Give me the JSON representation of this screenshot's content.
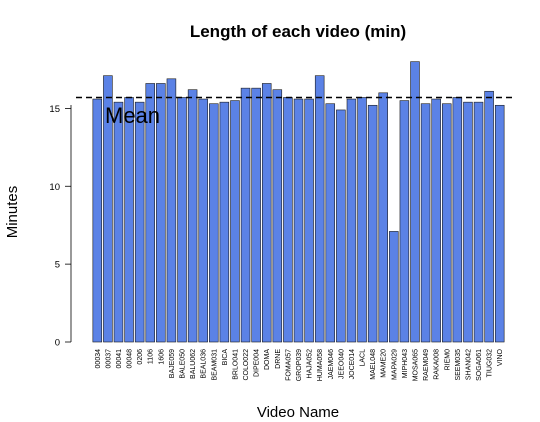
{
  "chart_data": {
    "type": "bar",
    "title": "Length of each video (min)",
    "xlabel": "Video Name",
    "ylabel": "Minutes",
    "ylim": [
      0,
      18.3
    ],
    "yticks": [
      0,
      5,
      10,
      15
    ],
    "bar_color": "#5b82e6",
    "categories": [
      "00034",
      "00037",
      "00041",
      "00048",
      "0206",
      "1106",
      "1606",
      "BAJE059",
      "BALE050",
      "BALU062",
      "BEAL036",
      "BEAM031",
      "BICA",
      "BRLO041",
      "COLO022",
      "DIPE004",
      "DOMA",
      "DRNE",
      "FOMA057",
      "GROP039",
      "HAJA052",
      "HUMA058",
      "JAEM046",
      "JEEO040",
      "JOCE014",
      "LACL",
      "MAEL048",
      "MAME20",
      "MAPA029",
      "MIPH043",
      "MOSA065",
      "RAEM049",
      "RAKA008",
      "RIEM0",
      "SEEM035",
      "SHAN042",
      "SOGA061",
      "TIUG032",
      "VINO"
    ],
    "values": [
      15.6,
      17.1,
      15.4,
      15.7,
      15.4,
      16.6,
      16.6,
      16.9,
      15.7,
      16.2,
      15.6,
      15.3,
      15.4,
      15.5,
      16.3,
      16.3,
      16.6,
      16.2,
      15.7,
      15.6,
      15.6,
      17.1,
      15.3,
      14.9,
      15.6,
      15.7,
      15.2,
      16.0,
      7.1,
      15.5,
      18.0,
      15.3,
      15.6,
      15.3,
      15.7,
      15.4,
      15.4,
      16.1,
      15.2
    ],
    "mean": 15.7,
    "annotations": [
      {
        "text": "Mean"
      }
    ],
    "grid": false,
    "legend": "none"
  }
}
